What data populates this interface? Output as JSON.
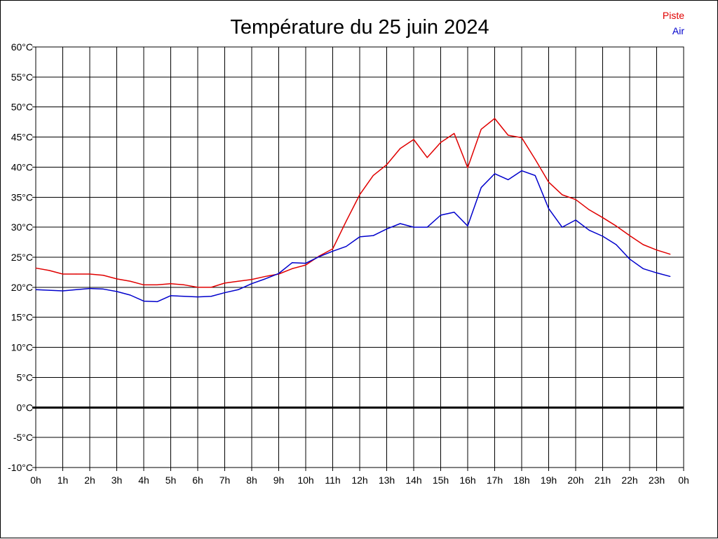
{
  "chart_data": {
    "type": "line",
    "title": "Température du 25 juin 2024",
    "xlabel": "",
    "ylabel": "",
    "x_ticks": [
      "0h",
      "1h",
      "2h",
      "3h",
      "4h",
      "5h",
      "6h",
      "7h",
      "8h",
      "9h",
      "10h",
      "11h",
      "12h",
      "13h",
      "14h",
      "15h",
      "16h",
      "17h",
      "18h",
      "19h",
      "20h",
      "21h",
      "22h",
      "23h",
      "0h"
    ],
    "y_ticks": [
      "60°C",
      "55°C",
      "50°C",
      "45°C",
      "40°C",
      "35°C",
      "30°C",
      "25°C",
      "20°C",
      "15°C",
      "10°C",
      "5°C",
      "0°C",
      "-5°C",
      "-10°C"
    ],
    "ylim": [
      -10,
      60
    ],
    "xlim": [
      0,
      24
    ],
    "grid": true,
    "zero_line": true,
    "legend_position": "top-right",
    "series": [
      {
        "name": "Piste",
        "color": "#e00000",
        "x": [
          0,
          0.5,
          1,
          1.5,
          2,
          2.5,
          3,
          3.5,
          4,
          4.5,
          5,
          5.5,
          6,
          6.5,
          7,
          7.5,
          8,
          8.5,
          9,
          9.5,
          10,
          10.5,
          11,
          11.5,
          12,
          12.5,
          13,
          13.5,
          14,
          14.5,
          15,
          15.5,
          16,
          16.5,
          17,
          17.5,
          18,
          18.5,
          19,
          19.5,
          20,
          20.5,
          21,
          21.5,
          22,
          22.5,
          23,
          23.5
        ],
        "values": [
          23.2,
          22.8,
          22.2,
          22.2,
          22.2,
          22,
          21.4,
          21,
          20.4,
          20.4,
          20.6,
          20.4,
          20,
          20,
          20.7,
          21,
          21.3,
          21.8,
          22.2,
          23.1,
          23.7,
          25.2,
          26.4,
          31,
          35.4,
          38.6,
          40.4,
          43.1,
          44.6,
          41.6,
          44.1,
          45.6,
          39.9,
          46.3,
          48.1,
          45.3,
          44.9,
          41.3,
          37.5,
          35.4,
          34.6,
          32.9,
          31.6,
          30.2,
          28.6,
          27.1,
          26.2,
          25.5
        ]
      },
      {
        "name": "Air",
        "color": "#0000cc",
        "x": [
          0,
          0.5,
          1,
          1.5,
          2,
          2.5,
          3,
          3.5,
          4,
          4.5,
          5,
          5.5,
          6,
          6.5,
          7,
          7.5,
          8,
          8.5,
          9,
          9.5,
          10,
          10.5,
          11,
          11.5,
          12,
          12.5,
          13,
          13.5,
          14,
          14.5,
          15,
          15.5,
          16,
          16.5,
          17,
          17.5,
          18,
          18.5,
          19,
          19.5,
          20,
          20.5,
          21,
          21.5,
          22,
          22.5,
          23,
          23.5
        ],
        "values": [
          19.6,
          19.5,
          19.4,
          19.6,
          19.8,
          19.7,
          19.3,
          18.7,
          17.7,
          17.6,
          18.6,
          18.5,
          18.4,
          18.5,
          19.1,
          19.6,
          20.6,
          21.4,
          22.3,
          24.1,
          24,
          25.1,
          26,
          26.8,
          28.4,
          28.6,
          29.7,
          30.6,
          30,
          30,
          32,
          32.5,
          30.2,
          36.6,
          38.9,
          37.9,
          39.4,
          38.6,
          33.1,
          30,
          31.2,
          29.5,
          28.5,
          27.1,
          24.7,
          23.1,
          22.4,
          21.8
        ]
      }
    ]
  }
}
